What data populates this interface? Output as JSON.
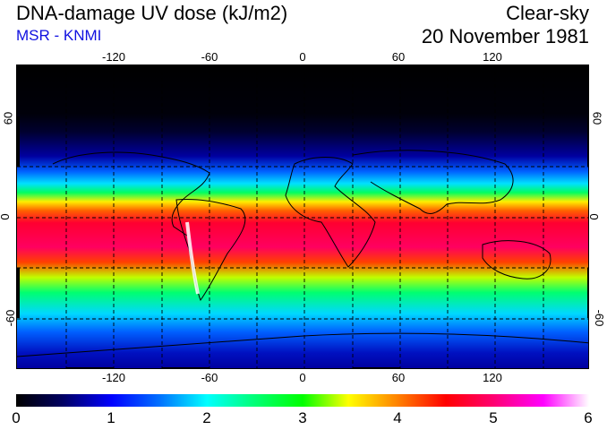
{
  "header": {
    "title": "DNA-damage UV dose (kJ/m2)",
    "source": "MSR - KNMI",
    "condition": "Clear-sky",
    "date": "20 November 1981"
  },
  "map": {
    "longitude_ticks": [
      "-120",
      "-60",
      "0",
      "60",
      "120"
    ],
    "latitude_ticks": [
      "60",
      "0",
      "-60"
    ],
    "grid": "dashed 30-degree graticule"
  },
  "colorbar": {
    "labels": [
      "0",
      "1",
      "2",
      "3",
      "4",
      "5",
      "6"
    ],
    "min": 0,
    "max": 6,
    "colors": [
      "#000000",
      "#0000ff",
      "#00ffff",
      "#00ff00",
      "#ffff00",
      "#ff0000",
      "#ff00ff",
      "#ffffff"
    ]
  }
}
